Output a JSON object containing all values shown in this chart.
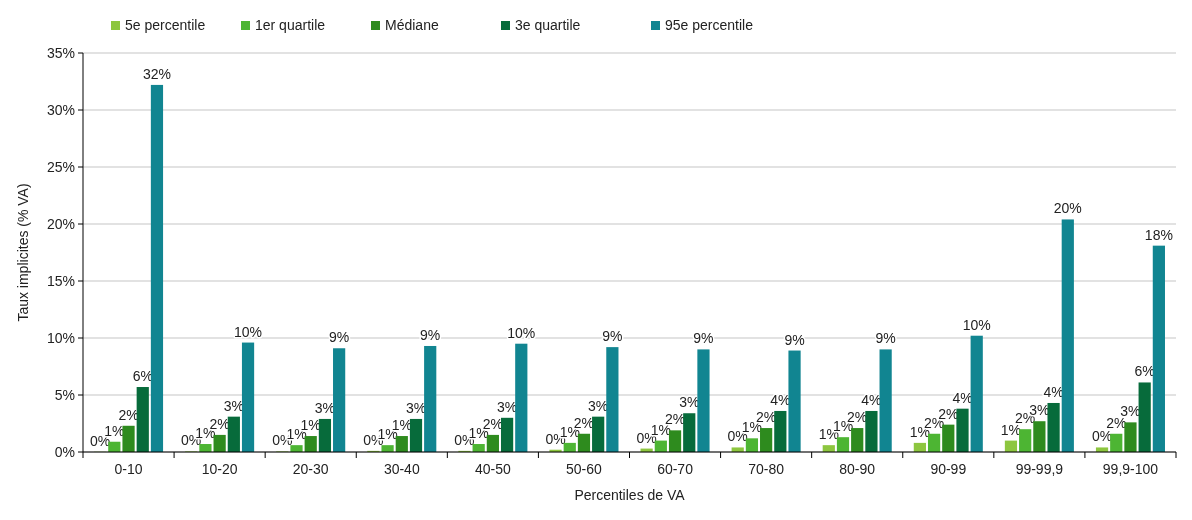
{
  "chart_data": {
    "type": "bar",
    "xlabel": "Percentiles de VA",
    "ylabel": "Taux implicites (% VA)",
    "categories": [
      "0-10",
      "10-20",
      "20-30",
      "30-40",
      "40-50",
      "50-60",
      "60-70",
      "70-80",
      "80-90",
      "90-99",
      "99-99,9",
      "99,9-100"
    ],
    "series": [
      {
        "name": "5e percentile",
        "color": "#8dc63f",
        "values": [
          0.02,
          0.05,
          0.05,
          0.1,
          0.1,
          0.2,
          0.3,
          0.4,
          0.6,
          0.8,
          1.0,
          0.4
        ],
        "value_labels": [
          "0%",
          "0%",
          "0%",
          "0%",
          "0%",
          "0%",
          "0%",
          "0%",
          "1%",
          "1%",
          "1%",
          "0%"
        ]
      },
      {
        "name": "1er quartile",
        "color": "#4db533",
        "values": [
          0.9,
          0.7,
          0.6,
          0.6,
          0.7,
          0.8,
          1.0,
          1.2,
          1.3,
          1.6,
          2.0,
          1.6
        ],
        "value_labels": [
          "1%",
          "1%",
          "1%",
          "1%",
          "1%",
          "1%",
          "1%",
          "1%",
          "1%",
          "2%",
          "2%",
          "2%"
        ]
      },
      {
        "name": "Médiane",
        "color": "#2e8b1e",
        "values": [
          2.3,
          1.5,
          1.4,
          1.4,
          1.5,
          1.6,
          1.9,
          2.1,
          2.1,
          2.4,
          2.7,
          2.6
        ],
        "value_labels": [
          "2%",
          "2%",
          "1%",
          "1%",
          "2%",
          "2%",
          "2%",
          "2%",
          "2%",
          "2%",
          "3%",
          "3%"
        ]
      },
      {
        "name": "3e quartile",
        "color": "#076b3b",
        "values": [
          5.7,
          3.1,
          2.9,
          2.9,
          3.0,
          3.1,
          3.4,
          3.6,
          3.6,
          3.8,
          4.3,
          6.1
        ],
        "value_labels": [
          "6%",
          "3%",
          "3%",
          "3%",
          "3%",
          "3%",
          "3%",
          "4%",
          "4%",
          "4%",
          "4%",
          "6%"
        ]
      },
      {
        "name": "95e percentile",
        "color": "#118591",
        "values": [
          32.2,
          9.6,
          9.1,
          9.3,
          9.5,
          9.2,
          9.0,
          8.9,
          9.0,
          10.2,
          20.4,
          18.1
        ],
        "value_labels": [
          "32%",
          "10%",
          "9%",
          "9%",
          "10%",
          "9%",
          "9%",
          "9%",
          "9%",
          "10%",
          "20%",
          "18%"
        ]
      }
    ],
    "ylim": [
      0,
      35
    ],
    "yticks": [
      {
        "value": 0,
        "label": "0%"
      },
      {
        "value": 5,
        "label": "5%"
      },
      {
        "value": 10,
        "label": "10%"
      },
      {
        "value": 15,
        "label": "15%"
      },
      {
        "value": 20,
        "label": "20%"
      },
      {
        "value": 25,
        "label": "25%"
      },
      {
        "value": 30,
        "label": "30%"
      },
      {
        "value": 35,
        "label": "35%"
      }
    ],
    "grid": "y",
    "legend": "top"
  }
}
